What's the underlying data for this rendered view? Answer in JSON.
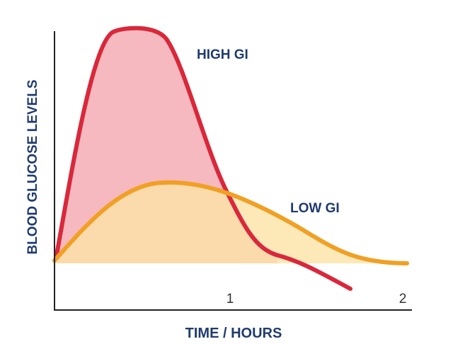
{
  "diagram": {
    "y_axis_label": "BLOOD GLUCOSE LEVELS",
    "x_axis_label": "TIME / HOURS",
    "x_tick_labels": [
      "1",
      "2"
    ],
    "curves": [
      {
        "label": "HIGH GI"
      },
      {
        "label": "LOW GI"
      }
    ]
  }
}
